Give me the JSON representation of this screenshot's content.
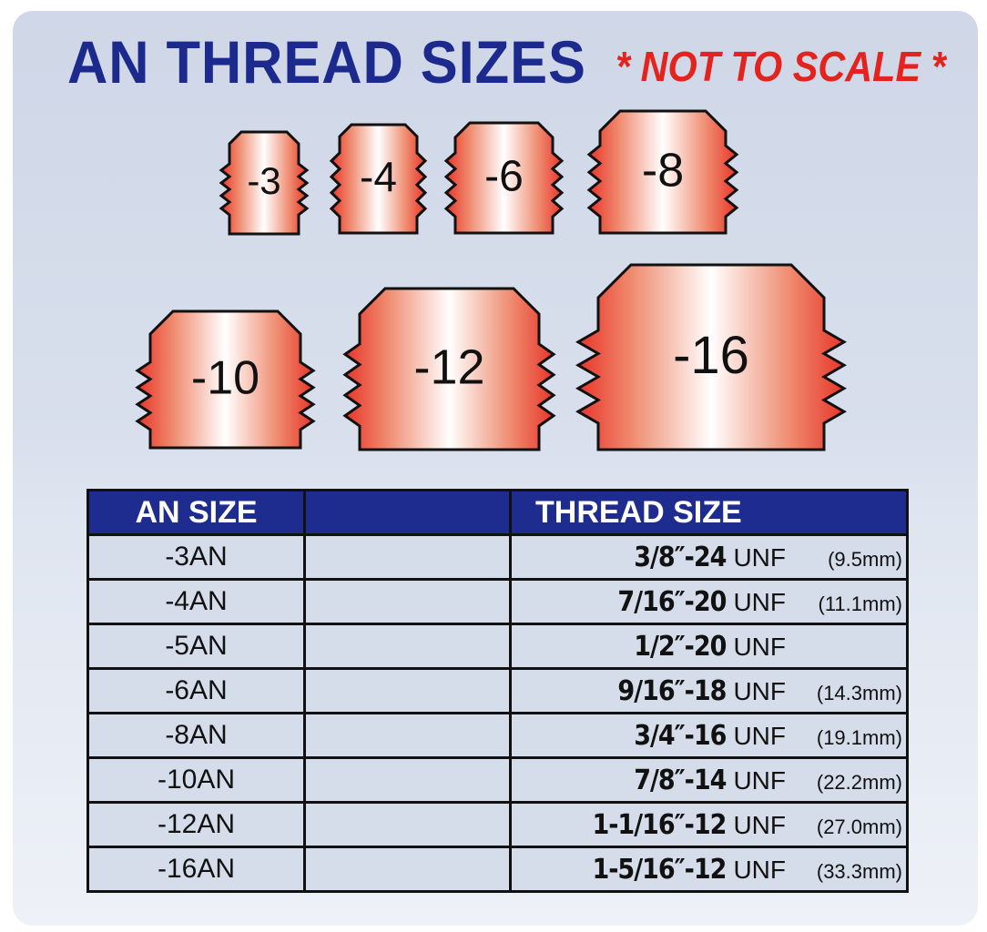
{
  "title": "AN THREAD SIZES",
  "note": "* NOT TO SCALE *",
  "fittings": [
    "-3",
    "-4",
    "-6",
    "-8",
    "-10",
    "-12",
    "-16"
  ],
  "colors": {
    "header": "#1e2b8f",
    "title": "#1c2a8e",
    "note": "#e3241e",
    "fitting_edge": "#e8352a"
  },
  "table": {
    "headers": [
      "AN SIZE",
      "",
      "THREAD SIZE"
    ],
    "rows": [
      {
        "an": "-3AN",
        "thread": "3/8″-24",
        "unf": "UNF",
        "mm": "(9.5mm)"
      },
      {
        "an": "-4AN",
        "thread": "7/16″-20",
        "unf": "UNF",
        "mm": "(11.1mm)"
      },
      {
        "an": "-5AN",
        "thread": "1/2″-20",
        "unf": "UNF",
        "mm": ""
      },
      {
        "an": "-6AN",
        "thread": "9/16″-18",
        "unf": "UNF",
        "mm": "(14.3mm)"
      },
      {
        "an": "-8AN",
        "thread": "3/4″-16",
        "unf": "UNF",
        "mm": "(19.1mm)"
      },
      {
        "an": "-10AN",
        "thread": "7/8″-14",
        "unf": "UNF",
        "mm": "(22.2mm)"
      },
      {
        "an": "-12AN",
        "thread": "1-1/16″-12",
        "unf": "UNF",
        "mm": "(27.0mm)"
      },
      {
        "an": "-16AN",
        "thread": "1-5/16″-12",
        "unf": "UNF",
        "mm": "(33.3mm)"
      }
    ]
  }
}
